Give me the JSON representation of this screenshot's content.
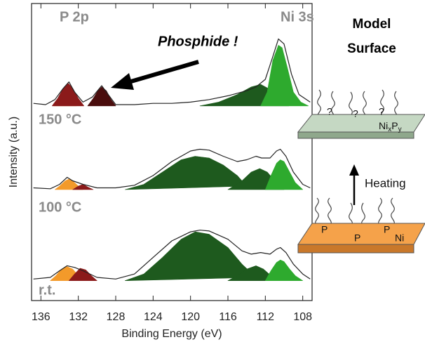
{
  "chart_data": [
    {
      "type": "area",
      "label": "150 °C",
      "ylabel": "Intensity (a.u.)",
      "annotations": [
        "P 2p",
        "Ni 3s",
        "Phosphide !"
      ],
      "xlim": [
        137,
        107
      ],
      "ylim": [
        0,
        100
      ],
      "series": [
        {
          "kind": "area",
          "color": "#f39a2a",
          "x": [
            134.6,
            134,
            133.4,
            132.8,
            132.2
          ],
          "values": [
            19,
            22,
            24,
            22,
            19
          ]
        },
        {
          "kind": "area",
          "color": "#8b1a1a",
          "x": [
            134.8,
            134.2,
            133.6,
            133.1,
            132.6,
            132,
            131.4
          ],
          "values": [
            19,
            25,
            33,
            37,
            33,
            25,
            19
          ]
        },
        {
          "kind": "area",
          "color": "#4a0d0d",
          "x": [
            131,
            130.4,
            129.9,
            129.5,
            129,
            128.5,
            128
          ],
          "values": [
            19,
            25,
            31,
            34,
            31,
            24,
            19
          ]
        },
        {
          "kind": "area",
          "color": "#1e5a1e",
          "x": [
            119,
            117,
            115,
            113.5,
            112.5,
            111.5,
            110.5,
            109.5
          ],
          "values": [
            19,
            22,
            28,
            34,
            36,
            32,
            24,
            19
          ]
        },
        {
          "kind": "area",
          "color": "#2eaa2e",
          "x": [
            112.5,
            111.8,
            111.2,
            110.6,
            110.2,
            109.6,
            109,
            108.2,
            107.4
          ],
          "values": [
            19,
            30,
            55,
            67,
            65,
            48,
            30,
            22,
            19
          ]
        },
        {
          "kind": "line",
          "color": "#222222",
          "x": [
            136.8,
            135.5,
            134.5,
            133.6,
            133,
            132.4,
            131.5,
            130.5,
            129.5,
            128.8,
            128,
            126,
            124,
            122,
            120,
            118,
            116,
            114,
            113,
            112,
            111.2,
            110.6,
            110,
            109.2,
            108.4,
            107.2
          ],
          "values": [
            21,
            20,
            24,
            33,
            38,
            30,
            22,
            26,
            35,
            28,
            20,
            20,
            21,
            21,
            22,
            24,
            27,
            31,
            34,
            40,
            58,
            72,
            68,
            44,
            28,
            22
          ]
        }
      ]
    },
    {
      "type": "area",
      "label": "100 °C",
      "xlim": [
        137,
        107
      ],
      "ylim": [
        0,
        100
      ],
      "series": [
        {
          "kind": "area",
          "color": "#f39a2a",
          "x": [
            134.5,
            134,
            133.4,
            133,
            132.5,
            132,
            131.5
          ],
          "values": [
            32,
            36,
            42,
            44,
            41,
            36,
            32
          ]
        },
        {
          "kind": "area",
          "color": "#8b1a1a",
          "x": [
            132.6,
            132,
            131.5,
            131,
            130.4
          ],
          "values": [
            32,
            36,
            38,
            35,
            32
          ]
        },
        {
          "kind": "area",
          "color": "#1e5a1e",
          "x": [
            127,
            125,
            123,
            121,
            119.5,
            118,
            116.5,
            115,
            114
          ],
          "values": [
            32,
            38,
            52,
            66,
            70,
            68,
            60,
            48,
            36
          ]
        },
        {
          "kind": "area",
          "color": "#1e5a1e",
          "x": [
            116,
            114.5,
            113.5,
            112.6,
            111.8,
            111,
            110
          ],
          "values": [
            32,
            42,
            52,
            56,
            52,
            42,
            32
          ]
        },
        {
          "kind": "area",
          "color": "#2eaa2e",
          "x": [
            112,
            111.4,
            110.8,
            110.4,
            110,
            109.4,
            108.8,
            108
          ],
          "values": [
            32,
            48,
            62,
            66,
            64,
            52,
            40,
            32
          ]
        },
        {
          "kind": "line",
          "color": "#222222",
          "x": [
            136.8,
            135,
            134,
            133.2,
            132.6,
            131.5,
            130,
            128,
            126,
            124,
            122,
            120,
            119,
            118,
            116.5,
            115,
            114,
            113,
            112.4,
            111.5,
            110.8,
            110.4,
            109.8,
            109,
            108,
            107.2
          ],
          "values": [
            34,
            33,
            38,
            46,
            42,
            38,
            34,
            34,
            37,
            48,
            64,
            76,
            78,
            77,
            70,
            64,
            66,
            70,
            68,
            68,
            76,
            78,
            70,
            52,
            38,
            34
          ]
        }
      ]
    },
    {
      "type": "area",
      "label": "r.t.",
      "xlabel": "Binding Energy (eV)",
      "xlim": [
        137,
        107
      ],
      "ylim": [
        0,
        100
      ],
      "xticks": [
        136,
        132,
        128,
        124,
        120,
        116,
        112,
        108
      ],
      "series": [
        {
          "kind": "area",
          "color": "#f39a2a",
          "x": [
            135,
            134.4,
            133.8,
            133.2,
            132.6,
            132,
            131.6
          ],
          "values": [
            24,
            30,
            38,
            41,
            38,
            30,
            24
          ]
        },
        {
          "kind": "area",
          "color": "#8b1a1a",
          "x": [
            133,
            132.4,
            131.8,
            131.2,
            130.6,
            130
          ],
          "values": [
            24,
            32,
            39,
            37,
            30,
            24
          ]
        },
        {
          "kind": "area",
          "color": "#1e5a1e",
          "x": [
            127,
            125,
            123,
            121,
            119.5,
            118,
            116,
            114.5,
            113
          ],
          "values": [
            24,
            32,
            52,
            74,
            83,
            80,
            64,
            44,
            28
          ]
        },
        {
          "kind": "area",
          "color": "#1e5a1e",
          "x": [
            116,
            115,
            114,
            113,
            112.2,
            111.4,
            110.6
          ],
          "values": [
            24,
            30,
            38,
            42,
            38,
            30,
            24
          ]
        },
        {
          "kind": "area",
          "color": "#2eaa2e",
          "x": [
            112,
            111.4,
            110.8,
            110.4,
            110,
            109.4,
            108.8,
            108
          ],
          "values": [
            24,
            36,
            46,
            49,
            47,
            38,
            30,
            24
          ]
        },
        {
          "kind": "line",
          "color": "#222222",
          "x": [
            136.8,
            135,
            134,
            133.2,
            132.4,
            131.5,
            130,
            128,
            126,
            124,
            122,
            120,
            119,
            118,
            116,
            114.5,
            113.5,
            112.5,
            111.5,
            110.8,
            110.4,
            109.8,
            109,
            108,
            107.2
          ],
          "values": [
            26,
            28,
            36,
            42,
            40,
            36,
            28,
            26,
            32,
            52,
            72,
            83,
            85,
            84,
            74,
            60,
            56,
            58,
            56,
            62,
            64,
            58,
            44,
            32,
            26
          ]
        }
      ]
    }
  ],
  "diagram": {
    "title": [
      "Model",
      "Surface"
    ],
    "arrow_label": "Heating",
    "top_surface": {
      "base1": "Ni",
      "sub1": "x",
      "base2": "P",
      "sub2": "y",
      "marks": [
        "?",
        "?",
        "?"
      ]
    },
    "bottom_surface": {
      "label": "Ni",
      "atoms": [
        "P",
        "P",
        "P"
      ]
    }
  }
}
